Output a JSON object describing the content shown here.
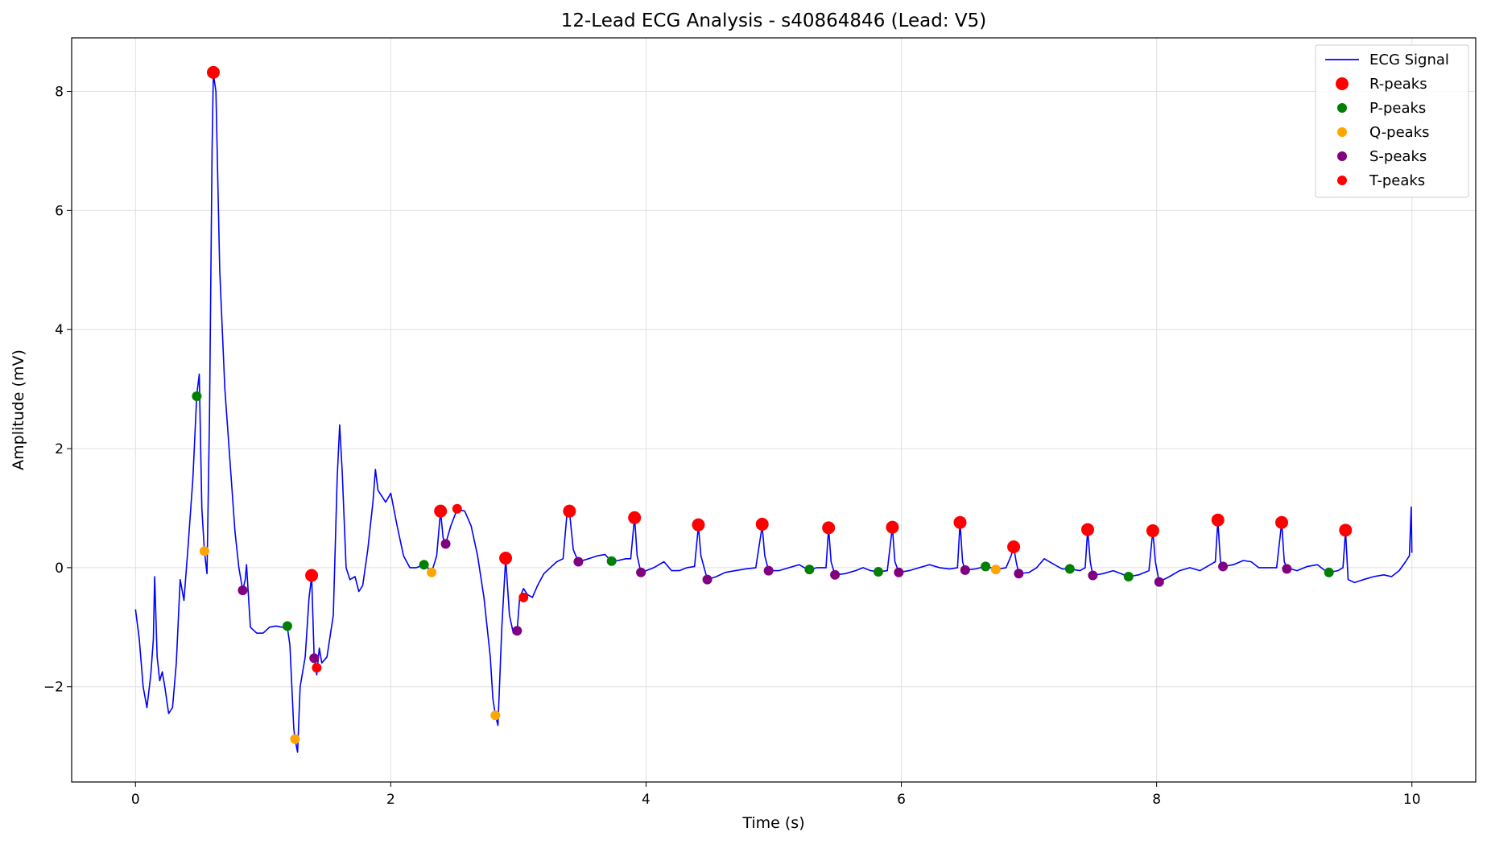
{
  "chart_data": {
    "type": "line",
    "title": "12-Lead ECG Analysis - s40864846 (Lead: V5)",
    "xlabel": "Time (s)",
    "ylabel": "Amplitude (mV)",
    "xlim": [
      -0.5,
      10.5
    ],
    "ylim": [
      -3.6,
      8.9
    ],
    "xticks": [
      0,
      2,
      4,
      6,
      8,
      10
    ],
    "yticks": [
      -2,
      0,
      2,
      4,
      6,
      8
    ],
    "grid": true,
    "legend_position": "top-right",
    "series": [
      {
        "name": "ECG Signal",
        "kind": "line",
        "color": "#0000ff",
        "points": [
          [
            0.0,
            -0.7
          ],
          [
            0.03,
            -1.2
          ],
          [
            0.06,
            -2.0
          ],
          [
            0.09,
            -2.35
          ],
          [
            0.12,
            -1.8
          ],
          [
            0.14,
            -1.2
          ],
          [
            0.15,
            -0.15
          ],
          [
            0.17,
            -1.5
          ],
          [
            0.19,
            -1.9
          ],
          [
            0.21,
            -1.75
          ],
          [
            0.23,
            -2.0
          ],
          [
            0.26,
            -2.45
          ],
          [
            0.29,
            -2.35
          ],
          [
            0.32,
            -1.6
          ],
          [
            0.35,
            -0.2
          ],
          [
            0.38,
            -0.55
          ],
          [
            0.41,
            0.3
          ],
          [
            0.45,
            1.5
          ],
          [
            0.48,
            2.9
          ],
          [
            0.5,
            3.25
          ],
          [
            0.52,
            1.0
          ],
          [
            0.54,
            0.28
          ],
          [
            0.56,
            -0.1
          ],
          [
            0.58,
            2.5
          ],
          [
            0.6,
            7.0
          ],
          [
            0.61,
            8.3
          ],
          [
            0.63,
            8.0
          ],
          [
            0.66,
            5.0
          ],
          [
            0.7,
            3.0
          ],
          [
            0.75,
            1.5
          ],
          [
            0.78,
            0.6
          ],
          [
            0.81,
            0.0
          ],
          [
            0.84,
            -0.38
          ],
          [
            0.86,
            -0.2
          ],
          [
            0.87,
            0.05
          ],
          [
            0.88,
            -0.3
          ],
          [
            0.9,
            -1.0
          ],
          [
            0.95,
            -1.1
          ],
          [
            1.0,
            -1.1
          ],
          [
            1.05,
            -1.0
          ],
          [
            1.1,
            -0.98
          ],
          [
            1.15,
            -1.0
          ],
          [
            1.19,
            -1.0
          ],
          [
            1.21,
            -1.3
          ],
          [
            1.24,
            -2.7
          ],
          [
            1.25,
            -2.88
          ],
          [
            1.27,
            -3.1
          ],
          [
            1.29,
            -2.0
          ],
          [
            1.33,
            -1.5
          ],
          [
            1.36,
            -0.5
          ],
          [
            1.38,
            -0.15
          ],
          [
            1.4,
            -1.5
          ],
          [
            1.42,
            -1.8
          ],
          [
            1.44,
            -1.35
          ],
          [
            1.46,
            -1.6
          ],
          [
            1.5,
            -1.5
          ],
          [
            1.55,
            -0.8
          ],
          [
            1.58,
            1.5
          ],
          [
            1.6,
            2.4
          ],
          [
            1.62,
            1.6
          ],
          [
            1.65,
            0.0
          ],
          [
            1.68,
            -0.2
          ],
          [
            1.72,
            -0.15
          ],
          [
            1.75,
            -0.4
          ],
          [
            1.78,
            -0.3
          ],
          [
            1.82,
            0.3
          ],
          [
            1.86,
            1.1
          ],
          [
            1.88,
            1.65
          ],
          [
            1.9,
            1.3
          ],
          [
            1.93,
            1.2
          ],
          [
            1.96,
            1.1
          ],
          [
            2.0,
            1.25
          ],
          [
            2.05,
            0.7
          ],
          [
            2.1,
            0.2
          ],
          [
            2.15,
            0.0
          ],
          [
            2.2,
            0.0
          ],
          [
            2.26,
            0.05
          ],
          [
            2.29,
            0.0
          ],
          [
            2.32,
            -0.08
          ],
          [
            2.36,
            0.2
          ],
          [
            2.39,
            0.95
          ],
          [
            2.41,
            0.5
          ],
          [
            2.43,
            0.4
          ],
          [
            2.47,
            0.7
          ],
          [
            2.52,
            0.98
          ],
          [
            2.58,
            0.95
          ],
          [
            2.63,
            0.7
          ],
          [
            2.68,
            0.2
          ],
          [
            2.73,
            -0.5
          ],
          [
            2.78,
            -1.5
          ],
          [
            2.8,
            -2.2
          ],
          [
            2.82,
            -2.48
          ],
          [
            2.84,
            -2.65
          ],
          [
            2.87,
            -1.0
          ],
          [
            2.9,
            0.15
          ],
          [
            2.93,
            -0.8
          ],
          [
            2.96,
            -1.1
          ],
          [
            2.99,
            -1.06
          ],
          [
            3.01,
            -0.5
          ],
          [
            3.04,
            -0.35
          ],
          [
            3.07,
            -0.45
          ],
          [
            3.11,
            -0.5
          ],
          [
            3.15,
            -0.3
          ],
          [
            3.2,
            -0.1
          ],
          [
            3.25,
            0.0
          ],
          [
            3.3,
            0.1
          ],
          [
            3.35,
            0.15
          ],
          [
            3.38,
            0.9
          ],
          [
            3.4,
            0.95
          ],
          [
            3.43,
            0.3
          ],
          [
            3.47,
            0.1
          ],
          [
            3.55,
            0.15
          ],
          [
            3.62,
            0.2
          ],
          [
            3.68,
            0.22
          ],
          [
            3.73,
            0.1
          ],
          [
            3.78,
            0.12
          ],
          [
            3.84,
            0.15
          ],
          [
            3.88,
            0.15
          ],
          [
            3.91,
            0.85
          ],
          [
            3.93,
            0.2
          ],
          [
            3.96,
            -0.08
          ],
          [
            4.0,
            -0.05
          ],
          [
            4.06,
            0.0
          ],
          [
            4.14,
            0.1
          ],
          [
            4.2,
            -0.05
          ],
          [
            4.26,
            -0.05
          ],
          [
            4.32,
            0.0
          ],
          [
            4.38,
            0.02
          ],
          [
            4.41,
            0.7
          ],
          [
            4.43,
            0.2
          ],
          [
            4.48,
            -0.2
          ],
          [
            4.55,
            -0.15
          ],
          [
            4.62,
            -0.08
          ],
          [
            4.7,
            -0.05
          ],
          [
            4.78,
            -0.02
          ],
          [
            4.86,
            0.0
          ],
          [
            4.91,
            0.7
          ],
          [
            4.93,
            0.2
          ],
          [
            4.96,
            -0.05
          ],
          [
            5.04,
            -0.05
          ],
          [
            5.12,
            0.0
          ],
          [
            5.2,
            0.05
          ],
          [
            5.24,
            0.0
          ],
          [
            5.28,
            -0.03
          ],
          [
            5.34,
            0.0
          ],
          [
            5.41,
            0.0
          ],
          [
            5.43,
            0.67
          ],
          [
            5.45,
            0.1
          ],
          [
            5.48,
            -0.12
          ],
          [
            5.56,
            -0.1
          ],
          [
            5.64,
            -0.05
          ],
          [
            5.7,
            0.0
          ],
          [
            5.76,
            -0.05
          ],
          [
            5.82,
            -0.07
          ],
          [
            5.89,
            -0.05
          ],
          [
            5.93,
            0.68
          ],
          [
            5.95,
            0.1
          ],
          [
            5.98,
            -0.08
          ],
          [
            6.06,
            -0.05
          ],
          [
            6.14,
            0.0
          ],
          [
            6.22,
            0.05
          ],
          [
            6.3,
            0.0
          ],
          [
            6.38,
            -0.02
          ],
          [
            6.44,
            0.0
          ],
          [
            6.46,
            0.76
          ],
          [
            6.48,
            0.1
          ],
          [
            6.5,
            -0.04
          ],
          [
            6.58,
            -0.02
          ],
          [
            6.66,
            0.02
          ],
          [
            6.7,
            0.0
          ],
          [
            6.74,
            -0.03
          ],
          [
            6.82,
            0.0
          ],
          [
            6.86,
            0.2
          ],
          [
            6.88,
            0.35
          ],
          [
            6.9,
            0.1
          ],
          [
            6.92,
            -0.1
          ],
          [
            7.0,
            -0.08
          ],
          [
            7.06,
            0.0
          ],
          [
            7.12,
            0.15
          ],
          [
            7.2,
            0.05
          ],
          [
            7.26,
            -0.02
          ],
          [
            7.32,
            -0.02
          ],
          [
            7.4,
            -0.05
          ],
          [
            7.44,
            0.0
          ],
          [
            7.46,
            0.64
          ],
          [
            7.48,
            0.1
          ],
          [
            7.5,
            -0.13
          ],
          [
            7.58,
            -0.1
          ],
          [
            7.66,
            -0.05
          ],
          [
            7.72,
            -0.1
          ],
          [
            7.78,
            -0.15
          ],
          [
            7.86,
            -0.12
          ],
          [
            7.94,
            -0.05
          ],
          [
            7.97,
            0.62
          ],
          [
            7.99,
            0.1
          ],
          [
            8.02,
            -0.24
          ],
          [
            8.1,
            -0.15
          ],
          [
            8.18,
            -0.05
          ],
          [
            8.26,
            0.0
          ],
          [
            8.34,
            -0.05
          ],
          [
            8.42,
            0.05
          ],
          [
            8.46,
            0.1
          ],
          [
            8.48,
            0.8
          ],
          [
            8.5,
            0.1
          ],
          [
            8.52,
            0.02
          ],
          [
            8.6,
            0.05
          ],
          [
            8.68,
            0.12
          ],
          [
            8.74,
            0.1
          ],
          [
            8.8,
            0.0
          ],
          [
            8.88,
            0.0
          ],
          [
            8.94,
            0.0
          ],
          [
            8.98,
            0.76
          ],
          [
            9.0,
            0.1
          ],
          [
            9.02,
            0.0
          ],
          [
            9.1,
            -0.05
          ],
          [
            9.18,
            0.02
          ],
          [
            9.26,
            0.05
          ],
          [
            9.32,
            -0.05
          ],
          [
            9.35,
            -0.08
          ],
          [
            9.42,
            -0.05
          ],
          [
            9.46,
            0.0
          ],
          [
            9.48,
            0.62
          ],
          [
            9.5,
            -0.2
          ],
          [
            9.55,
            -0.25
          ],
          [
            9.62,
            -0.2
          ],
          [
            9.7,
            -0.15
          ],
          [
            9.78,
            -0.12
          ],
          [
            9.84,
            -0.15
          ],
          [
            9.9,
            -0.05
          ],
          [
            9.95,
            0.1
          ],
          [
            9.98,
            0.2
          ],
          [
            9.995,
            1.02
          ],
          [
            10.0,
            0.25
          ]
        ]
      },
      {
        "name": "R-peaks",
        "kind": "marker",
        "color": "#ff0000",
        "size": "large",
        "points": [
          [
            0.61,
            8.32
          ],
          [
            1.38,
            -0.13
          ],
          [
            2.39,
            0.95
          ],
          [
            2.9,
            0.16
          ],
          [
            3.4,
            0.95
          ],
          [
            3.91,
            0.84
          ],
          [
            4.41,
            0.72
          ],
          [
            4.91,
            0.73
          ],
          [
            5.43,
            0.67
          ],
          [
            5.93,
            0.68
          ],
          [
            6.46,
            0.76
          ],
          [
            6.88,
            0.35
          ],
          [
            7.46,
            0.64
          ],
          [
            7.97,
            0.62
          ],
          [
            8.48,
            0.8
          ],
          [
            8.98,
            0.76
          ],
          [
            9.48,
            0.63
          ]
        ]
      },
      {
        "name": "P-peaks",
        "kind": "marker",
        "color": "#008000",
        "size": "small",
        "points": [
          [
            0.48,
            2.88
          ],
          [
            1.19,
            -0.98
          ],
          [
            2.26,
            0.05
          ],
          [
            3.73,
            0.11
          ],
          [
            5.28,
            -0.03
          ],
          [
            5.82,
            -0.07
          ],
          [
            6.66,
            0.02
          ],
          [
            7.32,
            -0.02
          ],
          [
            7.78,
            -0.15
          ],
          [
            9.35,
            -0.08
          ]
        ]
      },
      {
        "name": "Q-peaks",
        "kind": "marker",
        "color": "#ffa500",
        "size": "small",
        "points": [
          [
            0.54,
            0.28
          ],
          [
            1.25,
            -2.88
          ],
          [
            2.32,
            -0.08
          ],
          [
            2.82,
            -2.48
          ],
          [
            6.74,
            -0.03
          ]
        ]
      },
      {
        "name": "S-peaks",
        "kind": "marker",
        "color": "#800080",
        "size": "small",
        "points": [
          [
            0.84,
            -0.38
          ],
          [
            1.4,
            -1.52
          ],
          [
            2.43,
            0.4
          ],
          [
            2.99,
            -1.06
          ],
          [
            3.47,
            0.1
          ],
          [
            3.96,
            -0.08
          ],
          [
            4.48,
            -0.2
          ],
          [
            4.96,
            -0.05
          ],
          [
            5.48,
            -0.12
          ],
          [
            5.98,
            -0.08
          ],
          [
            6.5,
            -0.04
          ],
          [
            6.92,
            -0.1
          ],
          [
            7.5,
            -0.13
          ],
          [
            8.02,
            -0.24
          ],
          [
            8.52,
            0.02
          ],
          [
            9.02,
            -0.02
          ]
        ]
      },
      {
        "name": "T-peaks",
        "kind": "marker",
        "color": "#ff0000",
        "size": "small",
        "points": [
          [
            1.42,
            -1.68
          ],
          [
            2.52,
            0.99
          ],
          [
            3.04,
            -0.5
          ]
        ]
      }
    ]
  }
}
